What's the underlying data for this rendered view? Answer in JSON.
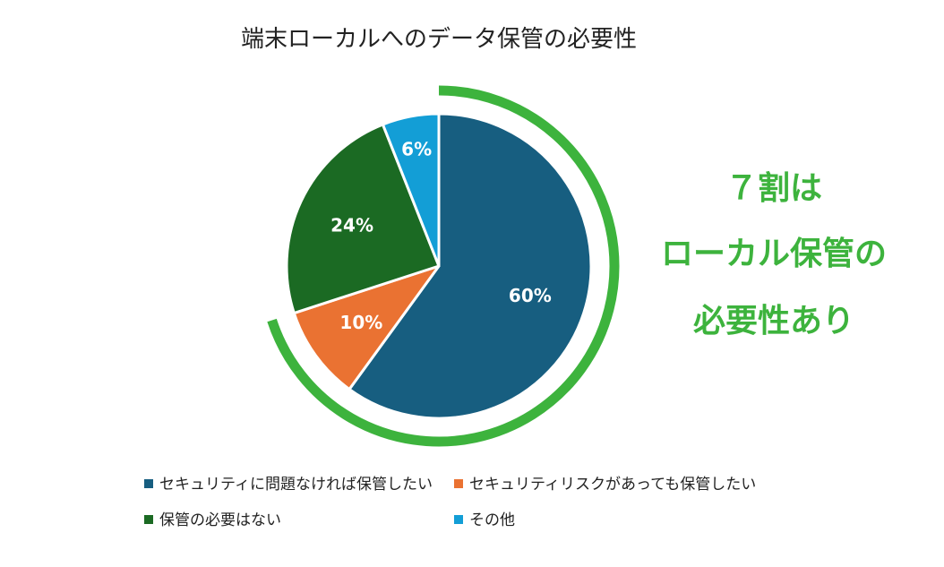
{
  "chart_data": {
    "type": "pie",
    "title": "端末ローカルへのデータ保管の必要性",
    "categories": [
      "セキュリティに問題なければ保管したい",
      "セキュリティリスクがあっても保管したい",
      "保管の必要はない",
      "その他"
    ],
    "values": [
      60,
      10,
      24,
      6
    ],
    "data_labels": [
      "60%",
      "10%",
      "24%",
      "6%"
    ],
    "colors": [
      "#175e80",
      "#ea7232",
      "#1b6a23",
      "#139ed6"
    ],
    "legend_position": "bottom",
    "callout": {
      "lines": [
        "７割は",
        "ローカル保管の",
        "必要性あり"
      ],
      "color": "#3db33d"
    }
  }
}
